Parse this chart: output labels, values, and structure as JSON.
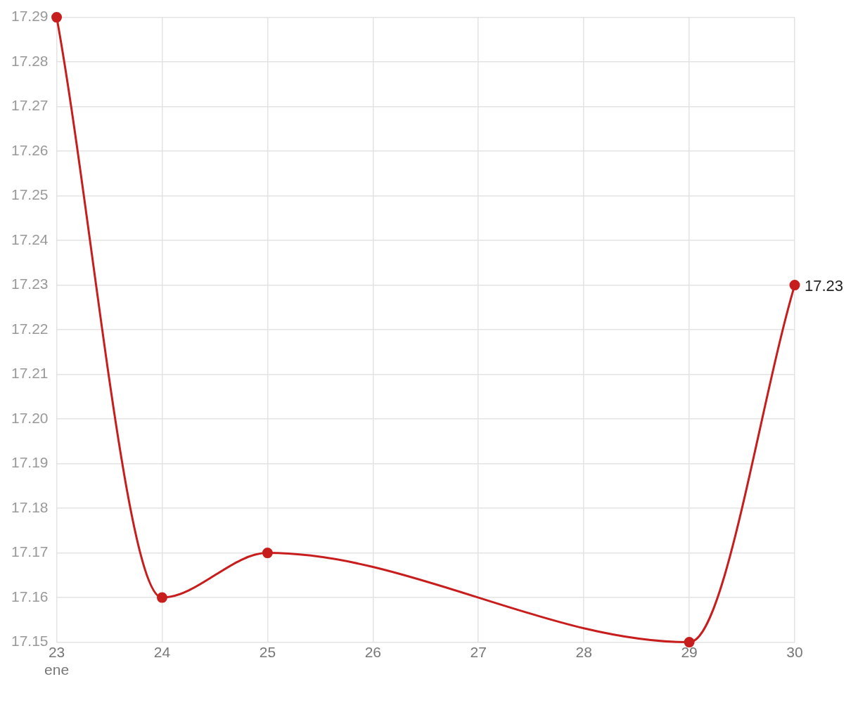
{
  "chart_data": {
    "type": "line",
    "x": [
      "--01-23",
      "--01-24",
      "--01-25",
      "--01-29",
      "--01-30"
    ],
    "series": [
      {
        "color": "#c71e1d",
        "values": [
          17.29,
          17.16,
          17.17,
          17.15,
          17.23
        ],
        "value_labels": [
          null,
          null,
          null,
          null,
          "17.23"
        ]
      }
    ],
    "xlim": [
      "--01-23",
      "--01-30"
    ],
    "xticks": [
      {
        "value": "--01-23",
        "label": "23\nene"
      },
      {
        "value": "--01-24",
        "label": "24"
      },
      {
        "value": "--01-25",
        "label": "25"
      },
      {
        "value": "--01-26",
        "label": "26"
      },
      {
        "value": "--01-27",
        "label": "27"
      },
      {
        "value": "--01-28",
        "label": "28"
      },
      {
        "value": "--01-29",
        "label": "29"
      },
      {
        "value": "--01-30",
        "label": "30"
      }
    ],
    "ylim": [
      17.15,
      17.29
    ],
    "yticks": [
      17.15,
      17.16,
      17.17,
      17.18,
      17.19,
      {
        "value": 17.2,
        "label": "17.20"
      },
      17.21,
      17.22,
      17.23,
      17.24,
      17.25,
      17.26,
      17.27,
      17.28,
      17.29
    ],
    "grid": true,
    "legend": false,
    "marker": "circle",
    "line_style": "solid"
  }
}
